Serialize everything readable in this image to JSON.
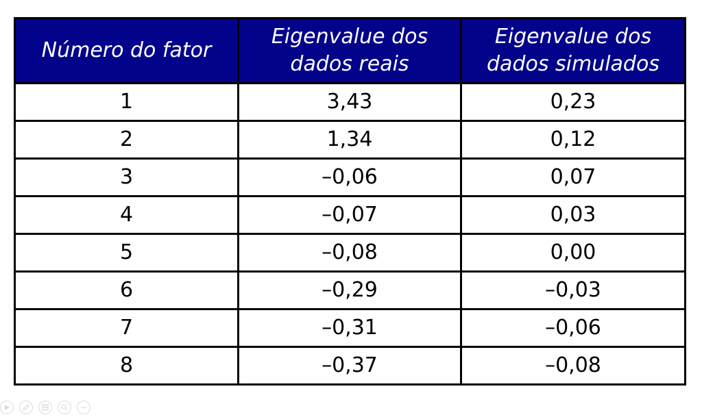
{
  "table": {
    "columns": [
      [
        "Número do fator"
      ],
      [
        "Eigenvalue dos",
        "dados reais"
      ],
      [
        "Eigenvalue dos",
        "dados simulados"
      ]
    ],
    "rows": [
      [
        "1",
        "3,43",
        "0,23"
      ],
      [
        "2",
        "1,34",
        "0,12"
      ],
      [
        "3",
        "–0,06",
        "0,07"
      ],
      [
        "4",
        "–0,07",
        "0,03"
      ],
      [
        "5",
        "–0,08",
        "0,00"
      ],
      [
        "6",
        "–0,29",
        "–0,03"
      ],
      [
        "7",
        "–0,31",
        "–0,06"
      ],
      [
        "8",
        "–0,37",
        "–0,08"
      ]
    ]
  },
  "colors": {
    "header_background": "#02028a",
    "header_text": "#ffffff",
    "border": "#000000"
  },
  "toolbar": {
    "icons": [
      "play-icon",
      "pen-icon",
      "slides-icon",
      "zoom-icon",
      "more-icon"
    ]
  }
}
